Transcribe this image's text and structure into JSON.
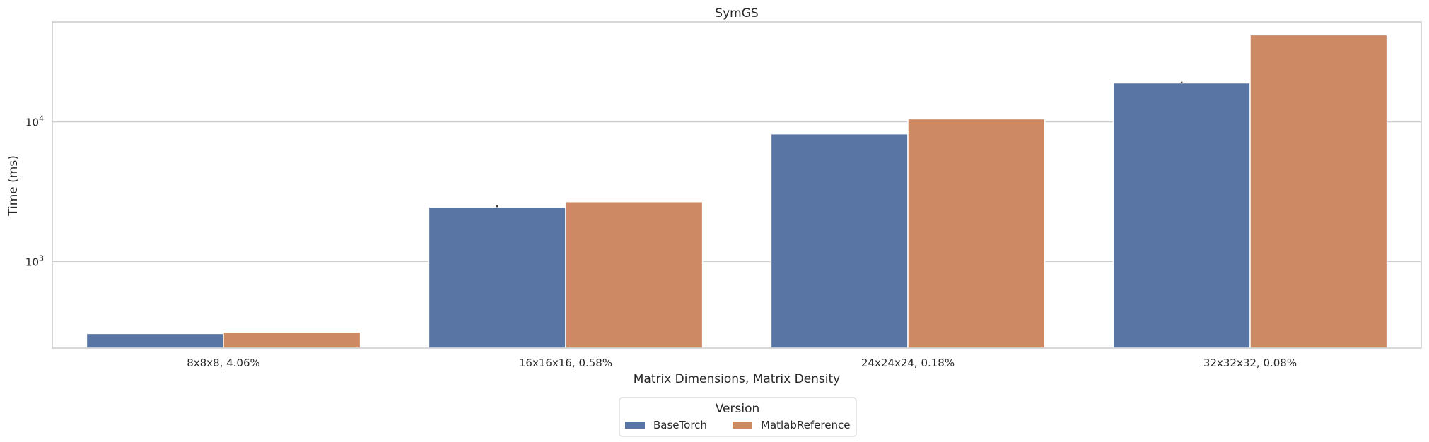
{
  "chart_data": {
    "type": "bar",
    "title": "SymGS",
    "xlabel": "Matrix Dimensions, Matrix Density",
    "ylabel": "Time (ms)",
    "yscale": "log",
    "ylim": [
      240,
      52000
    ],
    "grid": true,
    "categories": [
      "8x8x8, 4.06%",
      "16x16x16, 0.58%",
      "24x24x24, 0.18%",
      "32x32x32, 0.08%"
    ],
    "yticks": [
      {
        "value": 1000,
        "base": "10",
        "exp": "3"
      },
      {
        "value": 10000,
        "base": "10",
        "exp": "4"
      }
    ],
    "series": [
      {
        "name": "BaseTorch",
        "color": "#5975a4",
        "values": [
          305,
          2450,
          8200,
          19000
        ],
        "error_upper": [
          305,
          2520,
          8200,
          19400
        ]
      },
      {
        "name": "MatlabReference",
        "color": "#cc8963",
        "values": [
          312,
          2680,
          10500,
          42000
        ],
        "error_upper": [
          312,
          2680,
          10500,
          42000
        ]
      }
    ],
    "legend": {
      "title": "Version",
      "placement": "bottom-center"
    }
  }
}
